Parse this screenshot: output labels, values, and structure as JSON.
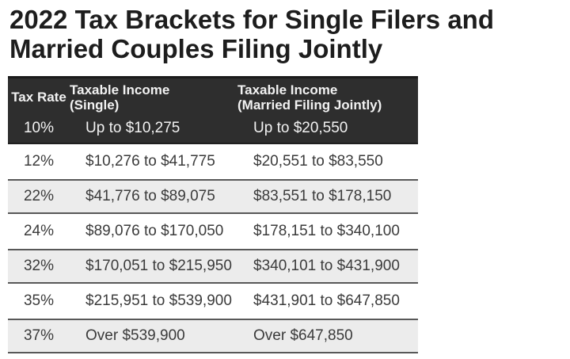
{
  "title": {
    "line1": "2022 Tax Brackets for Single Filers and",
    "line2": "Married Couples Filing Jointly",
    "full": "2022 Tax Brackets for Single Filers and Married Couples Filing Jointly"
  },
  "table": {
    "columns": {
      "rate": "Tax Rate",
      "single_line1": "Taxable Income",
      "single_line2": "(Single)",
      "married_line1": "Taxable Income",
      "married_line2": "(Married Filing Jointly)"
    },
    "rows": [
      {
        "rate": "10%",
        "single": "Up to $10,275",
        "married": "Up to $20,550"
      },
      {
        "rate": "12%",
        "single": "$10,276 to $41,775",
        "married": "$20,551 to $83,550"
      },
      {
        "rate": "22%",
        "single": "$41,776 to $89,075",
        "married": "$83,551 to $178,150"
      },
      {
        "rate": "24%",
        "single": "$89,076 to $170,050",
        "married": "$178,151 to $340,100"
      },
      {
        "rate": "32%",
        "single": "$170,051 to $215,950",
        "married": "$340,101 to $431,900"
      },
      {
        "rate": "35%",
        "single": "$215,951 to $539,900",
        "married": "$431,901 to $647,850"
      },
      {
        "rate": "37%",
        "single": "Over $539,900",
        "married": "Over $647,850"
      }
    ]
  },
  "colors": {
    "title_text": "#1d1d1d",
    "header_bg": "#2e2e2e",
    "header_text": "#f2f2f2",
    "row_alt_bg": "#ececec",
    "row_border": "#585858",
    "body_text": "#3b3b3b",
    "page_bg": "#ffffff"
  },
  "chart_data": {
    "type": "table",
    "title": "2022 Tax Brackets for Single Filers and Married Couples Filing Jointly",
    "columns": [
      "Tax Rate",
      "Taxable Income (Single)",
      "Taxable Income (Married Filing Jointly)"
    ],
    "rows": [
      [
        "10%",
        "Up to $10,275",
        "Up to $20,550"
      ],
      [
        "12%",
        "$10,276 to $41,775",
        "$20,551 to $83,550"
      ],
      [
        "22%",
        "$41,776 to $89,075",
        "$83,551 to $178,150"
      ],
      [
        "24%",
        "$89,076 to $170,050",
        "$178,151 to $340,100"
      ],
      [
        "32%",
        "$170,051 to $215,950",
        "$340,101 to $431,900"
      ],
      [
        "35%",
        "$215,951 to $539,900",
        "$431,901 to $647,850"
      ],
      [
        "37%",
        "Over $539,900",
        "Over $647,850"
      ]
    ]
  }
}
